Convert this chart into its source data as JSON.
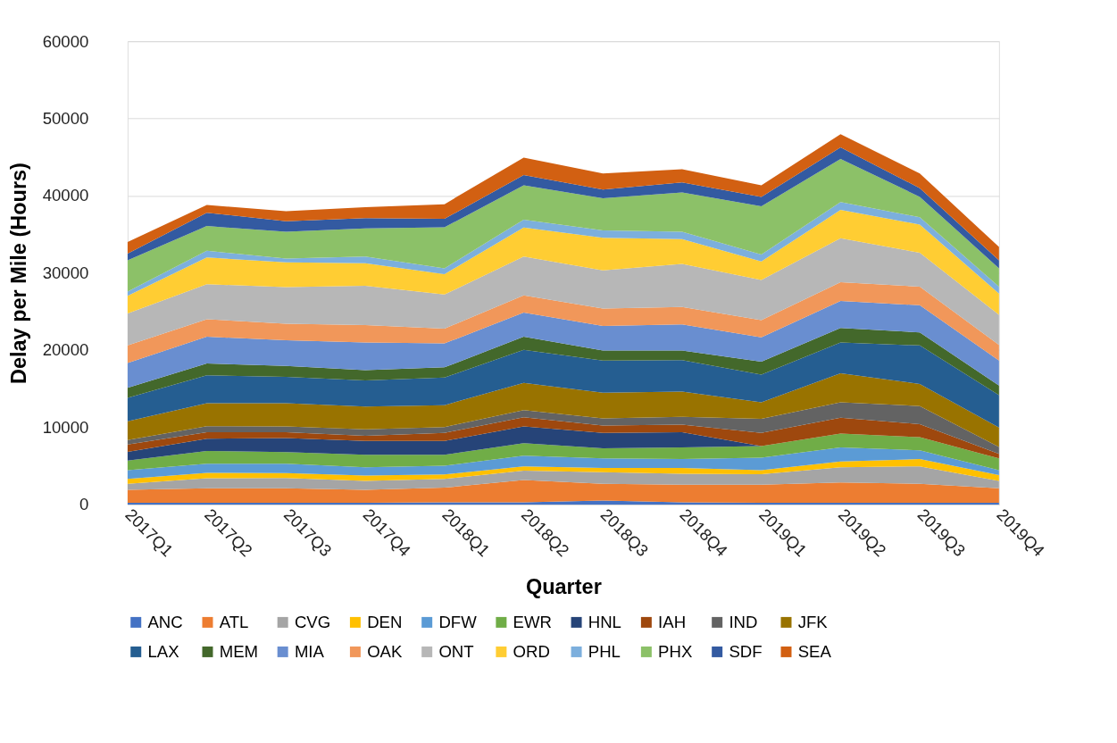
{
  "chart_data": {
    "type": "area",
    "stacked": true,
    "xlabel": "Quarter",
    "ylabel": "Delay per Mile (Hours)",
    "categories": [
      "2017Q1",
      "2017Q2",
      "2017Q3",
      "2017Q4",
      "2018Q1",
      "2018Q2",
      "2018Q3",
      "2018Q4",
      "2019Q1",
      "2019Q2",
      "2019Q3",
      "2019Q4"
    ],
    "ylim": [
      0,
      60000
    ],
    "yticks": [
      0,
      10000,
      20000,
      30000,
      40000,
      50000,
      60000
    ],
    "grid": "y",
    "legend": "bottom",
    "series": [
      {
        "name": "ANC",
        "color": "#4472c4",
        "values": [
          230,
          230,
          230,
          230,
          300,
          300,
          530,
          300,
          230,
          230,
          230,
          230
        ]
      },
      {
        "name": "ATL",
        "color": "#ed7d31",
        "values": [
          1690,
          1880,
          1880,
          1690,
          1890,
          2870,
          2150,
          2270,
          2340,
          2630,
          2450,
          1890
        ]
      },
      {
        "name": "CVG",
        "color": "#a5a5a5",
        "values": [
          760,
          1290,
          1320,
          1140,
          1130,
          1210,
          1510,
          1430,
          1360,
          1970,
          2270,
          940
        ]
      },
      {
        "name": "DEN",
        "color": "#ffc000",
        "values": [
          640,
          710,
          650,
          710,
          570,
          570,
          560,
          750,
          520,
          750,
          940,
          750
        ]
      },
      {
        "name": "DFW",
        "color": "#5b9bd5",
        "values": [
          1130,
          1170,
          1200,
          1060,
          1130,
          1390,
          1220,
          1140,
          1630,
          1810,
          1130,
          640
        ]
      },
      {
        "name": "EWR",
        "color": "#70ad47",
        "values": [
          1250,
          1660,
          1510,
          1620,
          1430,
          1620,
          1310,
          1500,
          1500,
          1810,
          1700,
          1520
        ]
      },
      {
        "name": "HNL",
        "color": "#264478",
        "values": [
          1130,
          1590,
          1810,
          1780,
          1780,
          2150,
          2000,
          1970,
          0,
          0,
          0,
          0
        ]
      },
      {
        "name": "IAH",
        "color": "#9e480e",
        "values": [
          940,
          830,
          760,
          680,
          1050,
          1180,
          940,
          980,
          1700,
          2040,
          1690,
          600
        ]
      },
      {
        "name": "IND",
        "color": "#636363",
        "values": [
          570,
          790,
          750,
          830,
          760,
          940,
          950,
          1010,
          1810,
          2000,
          2350,
          900
        ]
      },
      {
        "name": "JFK",
        "color": "#997300",
        "values": [
          2450,
          2980,
          3020,
          2940,
          2830,
          3540,
          3320,
          3290,
          2150,
          3770,
          2860,
          2490
        ]
      },
      {
        "name": "LAX",
        "color": "#255e91",
        "values": [
          3020,
          3620,
          3400,
          3390,
          3580,
          4260,
          4150,
          4070,
          3590,
          3970,
          4980,
          4220
        ]
      },
      {
        "name": "MEM",
        "color": "#43682b",
        "values": [
          1320,
          1510,
          1430,
          1330,
          1320,
          1700,
          1320,
          1250,
          1660,
          1890,
          1700,
          1220
        ]
      },
      {
        "name": "MIA",
        "color": "#698ed0",
        "values": [
          3210,
          3470,
          3320,
          3580,
          3090,
          3140,
          3170,
          3360,
          3170,
          3510,
          3510,
          3240
        ]
      },
      {
        "name": "OAK",
        "color": "#f1975a",
        "values": [
          2260,
          2270,
          2150,
          2260,
          1930,
          2230,
          2260,
          2260,
          2230,
          2410,
          2410,
          2040
        ]
      },
      {
        "name": "ONT",
        "color": "#b7b7b7",
        "values": [
          4160,
          4530,
          4720,
          5090,
          4410,
          5010,
          4950,
          5580,
          5200,
          5700,
          4380,
          3880
        ]
      },
      {
        "name": "ORD",
        "color": "#ffcd33",
        "values": [
          2260,
          3470,
          3210,
          2910,
          2650,
          3770,
          4220,
          3220,
          2380,
          3660,
          3660,
          2760
        ]
      },
      {
        "name": "PHL",
        "color": "#7cafdd",
        "values": [
          570,
          870,
          490,
          870,
          750,
          1020,
          950,
          940,
          910,
          1020,
          950,
          900
        ]
      },
      {
        "name": "PHX",
        "color": "#8cc168",
        "values": [
          4030,
          3200,
          3470,
          3660,
          5300,
          4450,
          4150,
          5090,
          6260,
          5580,
          2640,
          2380
        ]
      },
      {
        "name": "SDF",
        "color": "#335aa1",
        "values": [
          870,
          1730,
          1380,
          1330,
          1100,
          1330,
          1130,
          1320,
          1210,
          1510,
          1130,
          1020
        ]
      },
      {
        "name": "SEA",
        "color": "#d26012",
        "values": [
          1510,
          1000,
          1300,
          1400,
          1900,
          2260,
          2080,
          1700,
          1500,
          1700,
          1890,
          1740
        ]
      }
    ]
  }
}
